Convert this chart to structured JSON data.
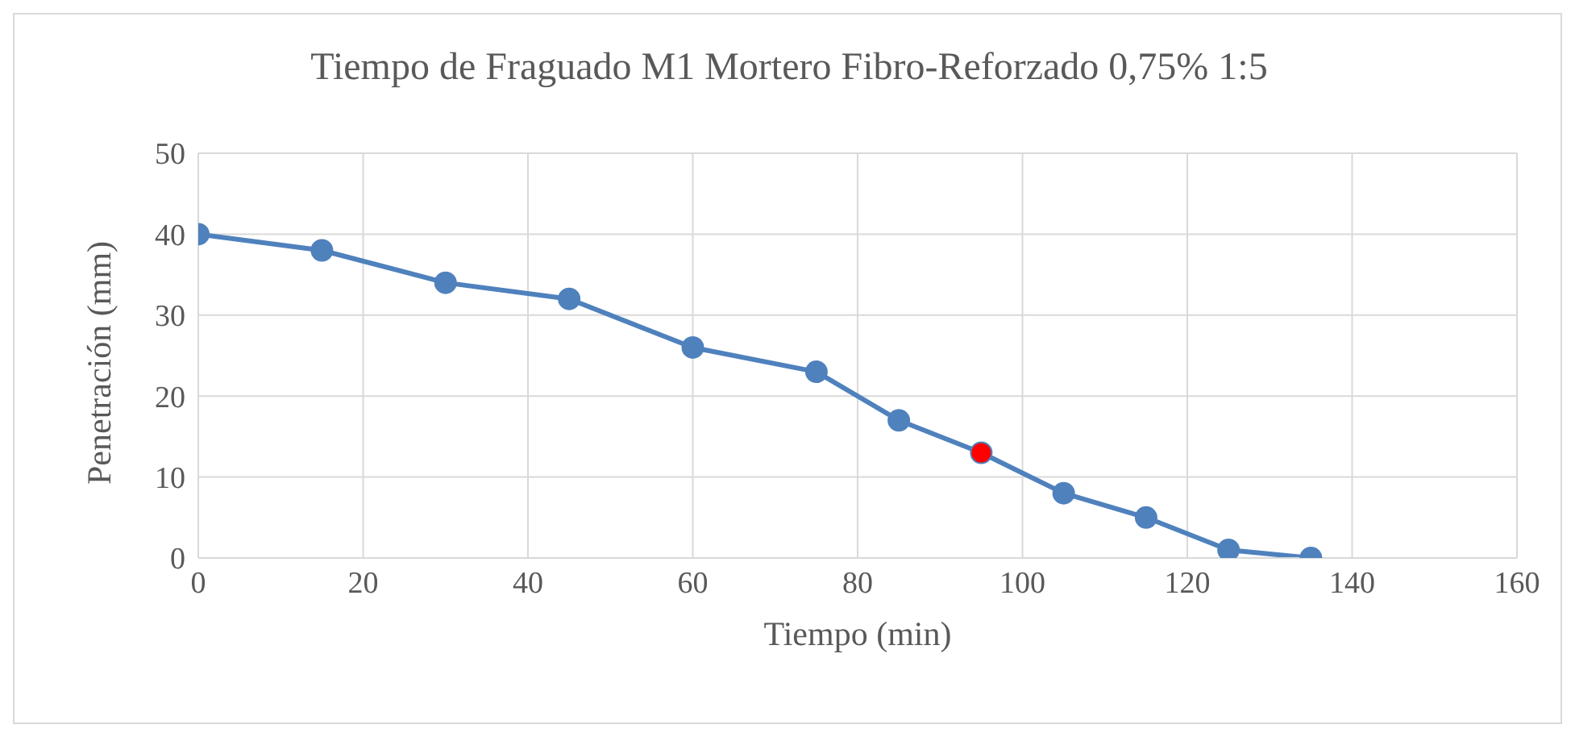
{
  "chart_data": {
    "type": "line",
    "title": "Tiempo de Fraguado M1 Mortero Fibro-Reforzado 0,75%  1:5",
    "xlabel": "Tiempo (min)",
    "ylabel": "Penetración (mm)",
    "x": [
      0,
      15,
      30,
      45,
      60,
      75,
      85,
      95,
      105,
      115,
      125,
      135
    ],
    "series": [
      {
        "color": "#4f81bd",
        "values": [
          40,
          38,
          34,
          32,
          26,
          23,
          17,
          13,
          8,
          5,
          1,
          0
        ],
        "colors": [
          "#4f81bd",
          "#4f81bd",
          "#4f81bd",
          "#4f81bd",
          "#4f81bd",
          "#4f81bd",
          "#4f81bd",
          "#ff0000",
          "#4f81bd",
          "#4f81bd",
          "#4f81bd",
          "#4f81bd"
        ]
      }
    ],
    "xlim": [
      0,
      160
    ],
    "xticks": [
      0,
      20,
      40,
      60,
      80,
      100,
      120,
      140,
      160
    ],
    "ylim": [
      0,
      50
    ],
    "yticks": [
      0,
      10,
      20,
      30,
      40,
      50
    ],
    "grid": true,
    "legend": false,
    "marker": "circle",
    "line_style": "solid"
  }
}
